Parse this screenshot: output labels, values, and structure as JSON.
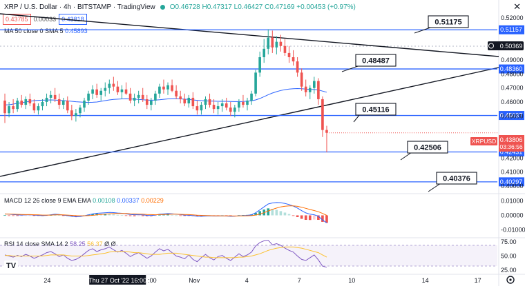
{
  "header": {
    "symbol_title": "XRP / U.S. Dollar · 4h · BITSTAMP · TradingView",
    "ohlc": "O0.46728 H0.47317 L0.46427 C0.47169 +0.00453 (+0.97%)"
  },
  "trade": {
    "sell": "0.43785",
    "spread": "0.00033",
    "buy": "0.43818"
  },
  "ma_legend": {
    "label": "MA 50 close 0 SMA 5",
    "value": "0.45893"
  },
  "macd_legend": {
    "label": "MACD 12 26 close 9 EMA EMA",
    "hist": "0.00108",
    "macd": "0.00337",
    "signal": "0.00229"
  },
  "rsi_legend": {
    "label": "RSI 14 close SMA 14 2",
    "rsi": "58.25",
    "sma": "56.37",
    "extra": "Ø Ø"
  },
  "icons": {
    "close": "close-icon",
    "target": "crosshair-icon",
    "settings": "gear-icon",
    "logo": "tradingview-logo-icon"
  },
  "colors": {
    "up": "#26a69a",
    "down": "#ef5350",
    "blue": "#2962ff",
    "ma": "#2962ff",
    "signal": "#ff6d00",
    "rsi": "#7e57c2",
    "rsi_ma": "#fbc02d"
  },
  "price_axis": [
    "0.52000",
    "0.50000",
    "0.49000",
    "0.48000",
    "0.47000",
    "0.46000",
    "0.45000",
    "0.43000",
    "0.42000",
    "0.41000",
    "0.40000"
  ],
  "levels": [
    {
      "label": "0.51175",
      "axis": "0.51157",
      "price": 0.51157
    },
    {
      "label": "0.48487",
      "axis": "0.48360",
      "price": 0.4836
    },
    {
      "label": "0.45116",
      "axis": "0.45037",
      "price": 0.45037
    },
    {
      "label": "0.42506",
      "axis": "0.42431",
      "price": 0.42431
    },
    {
      "label": "0.40376",
      "axis": "0.40297",
      "price": 0.40297
    }
  ],
  "current": {
    "crosshair_price": "0.50369",
    "symbol": "XRPUSD",
    "price": "0.43806",
    "countdown": "03:36:56",
    "value": 0.43806
  },
  "macd_axis": [
    "0.01000",
    "0.00000",
    "-0.01000"
  ],
  "rsi_axis": [
    "75.00",
    "50.00",
    "25.00"
  ],
  "time_axis": [
    {
      "label": "24",
      "t": 0.09
    },
    {
      "label": "Thu 27 Oct '22  16:00",
      "t": 0.22,
      "highlight": true
    },
    {
      "label": ":00",
      "t": 0.29
    },
    {
      "label": "Nov",
      "t": 0.37
    },
    {
      "label": "4",
      "t": 0.47
    },
    {
      "label": "7",
      "t": 0.57
    },
    {
      "label": "10",
      "t": 0.67
    },
    {
      "label": "14",
      "t": 0.81
    },
    {
      "label": "17",
      "t": 0.91
    }
  ],
  "chart_data": {
    "type": "candlestick",
    "price_range": [
      0.396,
      0.524
    ],
    "candles": [
      [
        0.461,
        0.466,
        0.445,
        0.452
      ],
      [
        0.452,
        0.46,
        0.449,
        0.457
      ],
      [
        0.457,
        0.462,
        0.452,
        0.455
      ],
      [
        0.455,
        0.463,
        0.453,
        0.461
      ],
      [
        0.461,
        0.465,
        0.456,
        0.458
      ],
      [
        0.458,
        0.464,
        0.455,
        0.462
      ],
      [
        0.462,
        0.466,
        0.457,
        0.459
      ],
      [
        0.459,
        0.462,
        0.452,
        0.454
      ],
      [
        0.454,
        0.459,
        0.451,
        0.457
      ],
      [
        0.457,
        0.462,
        0.454,
        0.46
      ],
      [
        0.46,
        0.466,
        0.457,
        0.463
      ],
      [
        0.463,
        0.468,
        0.459,
        0.465
      ],
      [
        0.465,
        0.47,
        0.46,
        0.462
      ],
      [
        0.462,
        0.466,
        0.455,
        0.458
      ],
      [
        0.458,
        0.463,
        0.455,
        0.461
      ],
      [
        0.461,
        0.464,
        0.452,
        0.454
      ],
      [
        0.454,
        0.458,
        0.447,
        0.45
      ],
      [
        0.45,
        0.455,
        0.446,
        0.452
      ],
      [
        0.452,
        0.458,
        0.449,
        0.456
      ],
      [
        0.456,
        0.463,
        0.453,
        0.461
      ],
      [
        0.461,
        0.468,
        0.458,
        0.466
      ],
      [
        0.466,
        0.472,
        0.462,
        0.469
      ],
      [
        0.469,
        0.473,
        0.463,
        0.465
      ],
      [
        0.465,
        0.47,
        0.461,
        0.468
      ],
      [
        0.468,
        0.474,
        0.464,
        0.47
      ],
      [
        0.47,
        0.476,
        0.466,
        0.473
      ],
      [
        0.473,
        0.478,
        0.468,
        0.471
      ],
      [
        0.471,
        0.475,
        0.465,
        0.467
      ],
      [
        0.467,
        0.472,
        0.462,
        0.469
      ],
      [
        0.469,
        0.474,
        0.465,
        0.466
      ],
      [
        0.466,
        0.47,
        0.459,
        0.461
      ],
      [
        0.461,
        0.466,
        0.457,
        0.463
      ],
      [
        0.463,
        0.468,
        0.459,
        0.465
      ],
      [
        0.465,
        0.47,
        0.46,
        0.462
      ],
      [
        0.462,
        0.465,
        0.455,
        0.458
      ],
      [
        0.458,
        0.463,
        0.454,
        0.461
      ],
      [
        0.461,
        0.468,
        0.458,
        0.466
      ],
      [
        0.466,
        0.473,
        0.463,
        0.471
      ],
      [
        0.471,
        0.476,
        0.466,
        0.469
      ],
      [
        0.469,
        0.474,
        0.465,
        0.472
      ],
      [
        0.472,
        0.476,
        0.467,
        0.468
      ],
      [
        0.468,
        0.472,
        0.462,
        0.464
      ],
      [
        0.464,
        0.468,
        0.459,
        0.462
      ],
      [
        0.462,
        0.466,
        0.457,
        0.459
      ],
      [
        0.459,
        0.465,
        0.456,
        0.463
      ],
      [
        0.463,
        0.467,
        0.455,
        0.457
      ],
      [
        0.457,
        0.461,
        0.451,
        0.454
      ],
      [
        0.454,
        0.46,
        0.451,
        0.458
      ],
      [
        0.458,
        0.464,
        0.455,
        0.462
      ],
      [
        0.462,
        0.466,
        0.456,
        0.458
      ],
      [
        0.458,
        0.462,
        0.452,
        0.455
      ],
      [
        0.455,
        0.46,
        0.451,
        0.457
      ],
      [
        0.457,
        0.462,
        0.453,
        0.459
      ],
      [
        0.459,
        0.463,
        0.454,
        0.456
      ],
      [
        0.456,
        0.46,
        0.45,
        0.453
      ],
      [
        0.453,
        0.458,
        0.449,
        0.456
      ],
      [
        0.456,
        0.462,
        0.453,
        0.46
      ],
      [
        0.46,
        0.465,
        0.456,
        0.458
      ],
      [
        0.458,
        0.463,
        0.454,
        0.461
      ],
      [
        0.461,
        0.468,
        0.458,
        0.466
      ],
      [
        0.466,
        0.483,
        0.464,
        0.481
      ],
      [
        0.481,
        0.496,
        0.478,
        0.492
      ],
      [
        0.492,
        0.505,
        0.488,
        0.498
      ],
      [
        0.498,
        0.512,
        0.494,
        0.506
      ],
      [
        0.506,
        0.511,
        0.495,
        0.499
      ],
      [
        0.499,
        0.507,
        0.494,
        0.503
      ],
      [
        0.503,
        0.508,
        0.496,
        0.5
      ],
      [
        0.5,
        0.505,
        0.493,
        0.495
      ],
      [
        0.495,
        0.5,
        0.488,
        0.492
      ],
      [
        0.492,
        0.497,
        0.486,
        0.489
      ],
      [
        0.489,
        0.492,
        0.478,
        0.481
      ],
      [
        0.481,
        0.484,
        0.468,
        0.471
      ],
      [
        0.471,
        0.476,
        0.464,
        0.467
      ],
      [
        0.467,
        0.472,
        0.462,
        0.47
      ],
      [
        0.47,
        0.478,
        0.466,
        0.475
      ],
      [
        0.475,
        0.477,
        0.458,
        0.462
      ],
      [
        0.462,
        0.464,
        0.435,
        0.44
      ],
      [
        0.44,
        0.443,
        0.424,
        0.438
      ]
    ],
    "ma": [
      0.458,
      0.458,
      0.4585,
      0.459,
      0.4595,
      0.46,
      0.4605,
      0.461,
      0.4612,
      0.4613,
      0.4614,
      0.4615,
      0.4614,
      0.4612,
      0.461,
      0.4608,
      0.4605,
      0.4602,
      0.46,
      0.4598,
      0.4597,
      0.4598,
      0.46,
      0.4605,
      0.461,
      0.4615,
      0.4618,
      0.462,
      0.4622,
      0.4623,
      0.4622,
      0.462,
      0.4618,
      0.4616,
      0.4614,
      0.4613,
      0.4614,
      0.4616,
      0.4619,
      0.4622,
      0.4624,
      0.4624,
      0.4622,
      0.462,
      0.4618,
      0.4615,
      0.4612,
      0.461,
      0.4608,
      0.4607,
      0.4606,
      0.4605,
      0.4605,
      0.4605,
      0.4604,
      0.4603,
      0.4603,
      0.4604,
      0.4606,
      0.4609,
      0.4615,
      0.4625,
      0.4638,
      0.4652,
      0.4664,
      0.4674,
      0.4682,
      0.4688,
      0.4692,
      0.4695,
      0.4696,
      0.4695,
      0.4692,
      0.469,
      0.4689,
      0.4686,
      0.4678,
      0.467
    ],
    "macd": {
      "range": [
        -0.014,
        0.0135
      ],
      "macd": [
        0.001,
        0.0008,
        0.0005,
        0.0003,
        0.0002,
        0.0003,
        0.0004,
        0.0002,
        0.0,
        -0.0002,
        0.0,
        0.0004,
        0.0008,
        0.0006,
        0.0002,
        -0.0002,
        -0.0007,
        -0.001,
        -0.0008,
        -0.0003,
        0.0003,
        0.001,
        0.0014,
        0.0016,
        0.0018,
        0.002,
        0.0019,
        0.0016,
        0.0014,
        0.0011,
        0.0006,
        0.0004,
        0.0004,
        0.0003,
        0.0,
        -0.0001,
        0.0002,
        0.0008,
        0.001,
        0.0012,
        0.0011,
        0.0008,
        0.0005,
        0.0002,
        0.0001,
        -0.0002,
        -0.0006,
        -0.0007,
        -0.0005,
        -0.0004,
        -0.0005,
        -0.0005,
        -0.0004,
        -0.0005,
        -0.0007,
        -0.0006,
        -0.0003,
        -0.0002,
        0.0,
        0.0004,
        0.0018,
        0.0038,
        0.0058,
        0.0078,
        0.0085,
        0.0088,
        0.0087,
        0.0082,
        0.0074,
        0.0064,
        0.005,
        0.0032,
        0.0017,
        0.0008,
        0.0004,
        -0.0006,
        -0.0032,
        -0.0052
      ],
      "signal": [
        0.0009,
        0.0009,
        0.0008,
        0.0007,
        0.0006,
        0.0005,
        0.0005,
        0.0004,
        0.0003,
        0.0002,
        0.0002,
        0.0002,
        0.0003,
        0.0004,
        0.0003,
        0.0002,
        0.0,
        -0.0002,
        -0.0003,
        -0.0003,
        -0.0002,
        0.0,
        0.0003,
        0.0006,
        0.0008,
        0.0011,
        0.0012,
        0.0013,
        0.0013,
        0.0013,
        0.0011,
        0.001,
        0.0009,
        0.0008,
        0.0006,
        0.0005,
        0.0004,
        0.0005,
        0.0006,
        0.0007,
        0.0008,
        0.0008,
        0.0007,
        0.0006,
        0.0005,
        0.0003,
        0.0001,
        0.0,
        -0.0001,
        -0.0002,
        -0.0003,
        -0.0003,
        -0.0004,
        -0.0004,
        -0.0004,
        -0.0005,
        -0.0004,
        -0.0004,
        -0.0003,
        -0.0002,
        0.0002,
        0.0009,
        0.0018,
        0.003,
        0.0041,
        0.005,
        0.0058,
        0.0063,
        0.0065,
        0.0065,
        0.0062,
        0.0056,
        0.0048,
        0.004,
        0.0033,
        0.0025,
        0.0013,
        0.0
      ]
    },
    "rsi": {
      "range": [
        20,
        80
      ],
      "rsi": [
        52,
        50,
        48,
        51,
        49,
        53,
        50,
        46,
        49,
        52,
        56,
        58,
        54,
        49,
        52,
        46,
        42,
        44,
        48,
        54,
        60,
        63,
        58,
        61,
        63,
        66,
        61,
        57,
        60,
        55,
        49,
        53,
        56,
        51,
        46,
        50,
        57,
        63,
        59,
        62,
        56,
        50,
        48,
        45,
        52,
        44,
        40,
        47,
        53,
        47,
        43,
        49,
        51,
        46,
        42,
        48,
        54,
        49,
        52,
        57,
        68,
        74,
        77,
        78,
        70,
        72,
        69,
        64,
        60,
        57,
        50,
        44,
        42,
        47,
        52,
        43,
        32,
        30
      ],
      "sma": [
        51,
        51,
        50,
        50,
        50,
        50,
        50,
        50,
        50,
        50,
        51,
        52,
        52,
        52,
        52,
        51,
        50,
        50,
        50,
        50,
        51,
        52,
        53,
        54,
        55,
        57,
        58,
        58,
        58,
        58,
        57,
        56,
        56,
        55,
        54,
        53,
        53,
        53,
        54,
        55,
        55,
        55,
        54,
        53,
        52,
        51,
        50,
        49,
        48,
        48,
        47,
        47,
        47,
        47,
        47,
        47,
        48,
        48,
        49,
        50,
        52,
        54,
        57,
        60,
        62,
        64,
        65,
        66,
        66,
        66,
        65,
        64,
        62,
        60,
        58,
        56,
        52,
        48
      ]
    }
  }
}
